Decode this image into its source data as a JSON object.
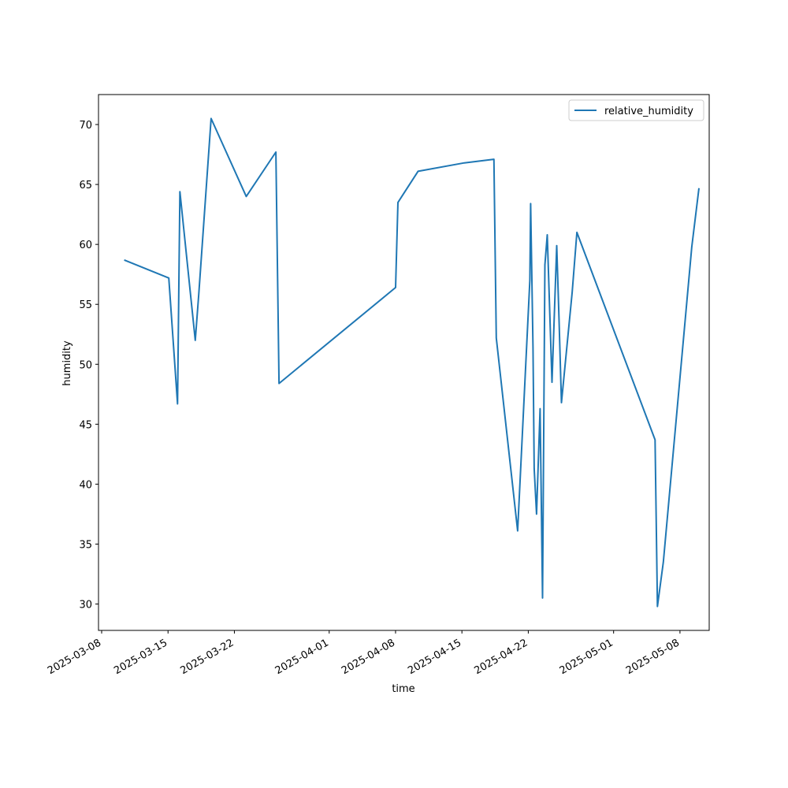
{
  "chart_data": {
    "type": "line",
    "title": "",
    "xlabel": "time",
    "ylabel": "humidity",
    "x_type": "date",
    "xlim": [
      "2025-03-07T16:00",
      "2025-05-11T02:00"
    ],
    "ylim": [
      27.8,
      72.5
    ],
    "x_ticks": [
      "2025-03-08",
      "2025-03-15",
      "2025-03-22",
      "2025-04-01",
      "2025-04-08",
      "2025-04-15",
      "2025-04-22",
      "2025-05-01",
      "2025-05-08"
    ],
    "y_ticks": [
      30,
      35,
      40,
      45,
      50,
      55,
      60,
      65,
      70
    ],
    "legend": {
      "position": "top-right",
      "entries": [
        "relative_humidity"
      ]
    },
    "grid": false,
    "series": [
      {
        "name": "relative_humidity",
        "color": "#1f77b4",
        "points": [
          {
            "x": "2025-03-10T09:00",
            "y": 58.7
          },
          {
            "x": "2025-03-15T02:00",
            "y": 57.2
          },
          {
            "x": "2025-03-16T00:00",
            "y": 46.7
          },
          {
            "x": "2025-03-16T06:00",
            "y": 64.4
          },
          {
            "x": "2025-03-17T21:00",
            "y": 52.0
          },
          {
            "x": "2025-03-18T06:00",
            "y": 55.9
          },
          {
            "x": "2025-03-19T13:00",
            "y": 70.5
          },
          {
            "x": "2025-03-23T06:00",
            "y": 64.0
          },
          {
            "x": "2025-03-26T09:00",
            "y": 67.7
          },
          {
            "x": "2025-03-26T17:00",
            "y": 48.4
          },
          {
            "x": "2025-04-08T00:00",
            "y": 56.4
          },
          {
            "x": "2025-04-08T06:00",
            "y": 63.5
          },
          {
            "x": "2025-04-10T09:00",
            "y": 66.1
          },
          {
            "x": "2025-04-15T06:00",
            "y": 66.8
          },
          {
            "x": "2025-04-18T09:00",
            "y": 67.1
          },
          {
            "x": "2025-04-18T15:00",
            "y": 52.2
          },
          {
            "x": "2025-04-20T21:00",
            "y": 36.1
          },
          {
            "x": "2025-04-22T04:00",
            "y": 57.0
          },
          {
            "x": "2025-04-22T06:00",
            "y": 63.4
          },
          {
            "x": "2025-04-22T12:00",
            "y": 51.4
          },
          {
            "x": "2025-04-22T15:00",
            "y": 41.3
          },
          {
            "x": "2025-04-22T21:00",
            "y": 37.5
          },
          {
            "x": "2025-04-23T06:00",
            "y": 46.3
          },
          {
            "x": "2025-04-23T12:00",
            "y": 30.5
          },
          {
            "x": "2025-04-23T18:00",
            "y": 58.3
          },
          {
            "x": "2025-04-24T00:00",
            "y": 60.8
          },
          {
            "x": "2025-04-24T12:00",
            "y": 48.5
          },
          {
            "x": "2025-04-25T00:00",
            "y": 59.9
          },
          {
            "x": "2025-04-25T06:00",
            "y": 53.6
          },
          {
            "x": "2025-04-25T12:00",
            "y": 46.8
          },
          {
            "x": "2025-04-26T15:00",
            "y": 56.0
          },
          {
            "x": "2025-04-27T03:00",
            "y": 61.0
          },
          {
            "x": "2025-05-05T09:00",
            "y": 43.7
          },
          {
            "x": "2025-05-05T15:00",
            "y": 29.8
          },
          {
            "x": "2025-05-06T06:00",
            "y": 33.5
          },
          {
            "x": "2025-05-09T06:00",
            "y": 59.8
          },
          {
            "x": "2025-05-10T00:00",
            "y": 64.7
          }
        ]
      }
    ]
  }
}
